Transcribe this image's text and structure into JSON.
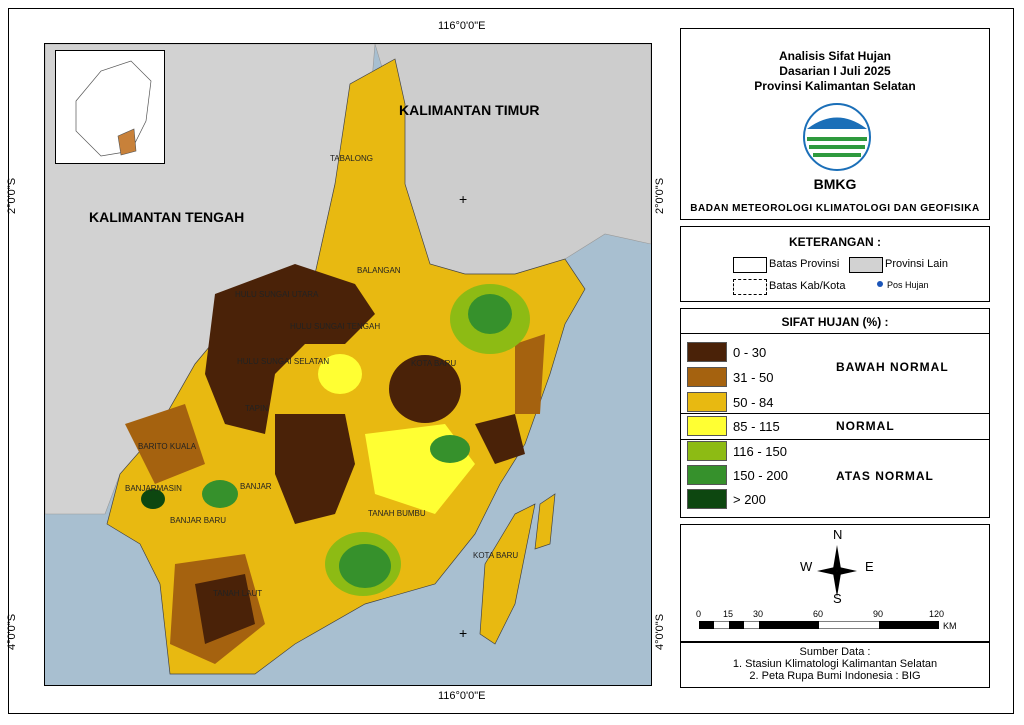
{
  "coords": {
    "top_lon": "116°0'0\"E",
    "bottom_lon": "116°0'0\"E",
    "lat_2": "2°0'0\"S",
    "lat_4": "4°0'0\"S"
  },
  "map_labels": {
    "kaltim": "KALIMANTAN TIMUR",
    "kalteng": "KALIMANTAN TENGAH",
    "regions": [
      "TABALONG",
      "BALANGAN",
      "HULU SUNGAI UTARA",
      "HULU SUNGAI TENGAH",
      "HULU SUNGAI SELATAN",
      "KOTA BARU",
      "TAPIN",
      "BARITO KUALA",
      "BANJARMASIN",
      "BANJAR",
      "BANJAR BARU",
      "TANAH BUMBU",
      "KOTA BARU",
      "TANAH LAUT"
    ]
  },
  "header": {
    "line1": "Analisis Sifat Hujan",
    "line2": "Dasarian I Juli 2025",
    "line3": "Provinsi Kalimantan Selatan",
    "logo_text": "BMKG",
    "org": "BADAN METEOROLOGI KLIMATOLOGI DAN GEOFISIKA"
  },
  "keterangan": {
    "title": "KETERANGAN :",
    "batas_provinsi": "Batas Provinsi",
    "provinsi_lain": "Provinsi Lain",
    "batas_kab": "Batas Kab/Kota",
    "pos_hujan": "Pos Hujan"
  },
  "legend": {
    "title": "SIFAT HUJAN (%) :",
    "classes": [
      {
        "range": "0 - 30",
        "color": "#4a2208"
      },
      {
        "range": "31 - 50",
        "color": "#a5620f"
      },
      {
        "range": "50 - 84",
        "color": "#e8b911"
      },
      {
        "range": "85 - 115",
        "color": "#ffff33"
      },
      {
        "range": "116 - 150",
        "color": "#8dbb14"
      },
      {
        "range": "150 - 200",
        "color": "#36912c"
      },
      {
        "range": "> 200",
        "color": "#0d4710"
      }
    ],
    "cat_below": "BAWAH NORMAL",
    "cat_normal": "NORMAL",
    "cat_above": "ATAS NORMAL"
  },
  "compass": {
    "n": "N",
    "s": "S",
    "e": "E",
    "w": "W"
  },
  "scale": {
    "ticks": [
      "0",
      "15",
      "30",
      "60",
      "90",
      "120"
    ],
    "unit": "KM"
  },
  "source": {
    "title": "Sumber Data :",
    "line1": "1. Stasiun Klimatologi Kalimantan Selatan",
    "line2": "2. Peta Rupa Bumi Indonesia : BIG"
  }
}
